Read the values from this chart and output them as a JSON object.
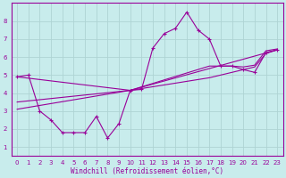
{
  "bg_color": "#c8ecec",
  "grid_color": "#aed4d4",
  "line_color": "#990099",
  "xlabel": "Windchill (Refroidissement éolien,°C)",
  "ylim": [
    0.5,
    9.0
  ],
  "xlim": [
    -0.5,
    23.5
  ],
  "yticks": [
    1,
    2,
    3,
    4,
    5,
    6,
    7,
    8
  ],
  "xticks": [
    0,
    1,
    2,
    3,
    4,
    5,
    6,
    7,
    8,
    9,
    10,
    11,
    12,
    13,
    14,
    15,
    16,
    17,
    18,
    19,
    20,
    21,
    22,
    23
  ],
  "main_x": [
    0,
    1,
    2,
    3,
    4,
    5,
    6,
    7,
    8,
    9,
    10,
    11,
    12,
    13,
    14,
    15,
    16,
    17,
    18,
    19,
    20,
    21,
    22,
    23
  ],
  "main_y": [
    4.9,
    5.0,
    3.0,
    2.5,
    1.8,
    1.8,
    1.8,
    2.7,
    1.5,
    2.3,
    4.15,
    4.2,
    6.5,
    7.3,
    7.6,
    8.5,
    7.5,
    7.0,
    5.5,
    5.5,
    5.3,
    5.15,
    6.25,
    6.4
  ],
  "trend1_x": [
    0,
    10,
    17,
    19,
    20,
    21,
    22,
    23
  ],
  "trend1_y": [
    4.9,
    4.15,
    5.5,
    5.5,
    5.45,
    5.55,
    6.35,
    6.45
  ],
  "trend2_x": [
    0,
    10,
    17,
    19,
    20,
    21,
    22,
    23
  ],
  "trend2_y": [
    3.5,
    4.15,
    4.85,
    5.15,
    5.3,
    5.45,
    6.2,
    6.4
  ],
  "trend3_x": [
    0,
    10,
    23
  ],
  "trend3_y": [
    3.1,
    4.15,
    6.4
  ]
}
